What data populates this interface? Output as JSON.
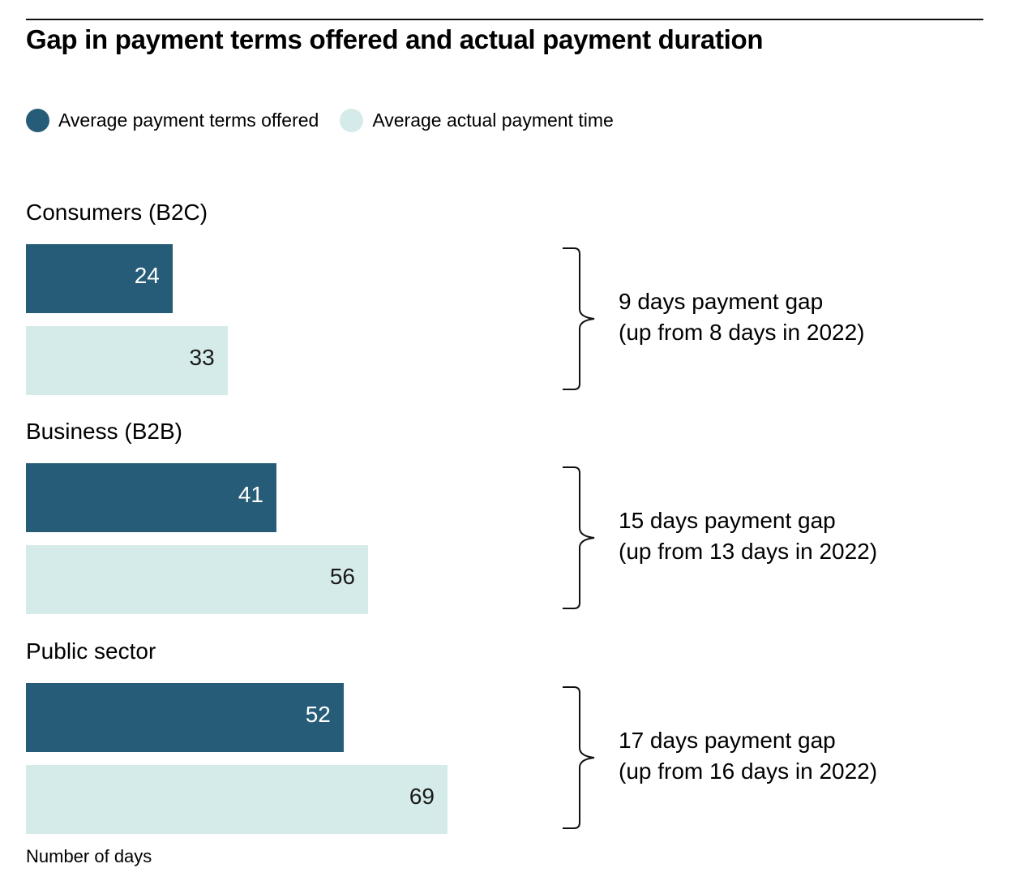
{
  "chart_data": {
    "type": "bar",
    "orientation": "horizontal",
    "title": "Gap in payment terms offered and actual payment duration",
    "xlabel": "Number of days",
    "ylabel": "",
    "categories": [
      "Consumers (B2C)",
      "Business (B2B)",
      "Public sector"
    ],
    "series": [
      {
        "name": "Average payment terms offered",
        "color": "#275c78",
        "label_color": "#ffffff",
        "values": [
          24,
          41,
          52
        ]
      },
      {
        "name": "Average actual payment time",
        "color": "#d5ebe9",
        "label_color": "#1a1a1a",
        "values": [
          33,
          56,
          69
        ]
      }
    ],
    "annotations": [
      {
        "line1": "9 days payment gap",
        "line2": "(up from 8 days in 2022)"
      },
      {
        "line1": "15 days payment gap",
        "line2": "(up from 13 days in 2022)"
      },
      {
        "line1": "17 days payment gap",
        "line2": "(up from 16 days in 2022)"
      }
    ],
    "xlim": [
      0,
      69
    ],
    "grid": false,
    "legend_position": "top-left"
  }
}
